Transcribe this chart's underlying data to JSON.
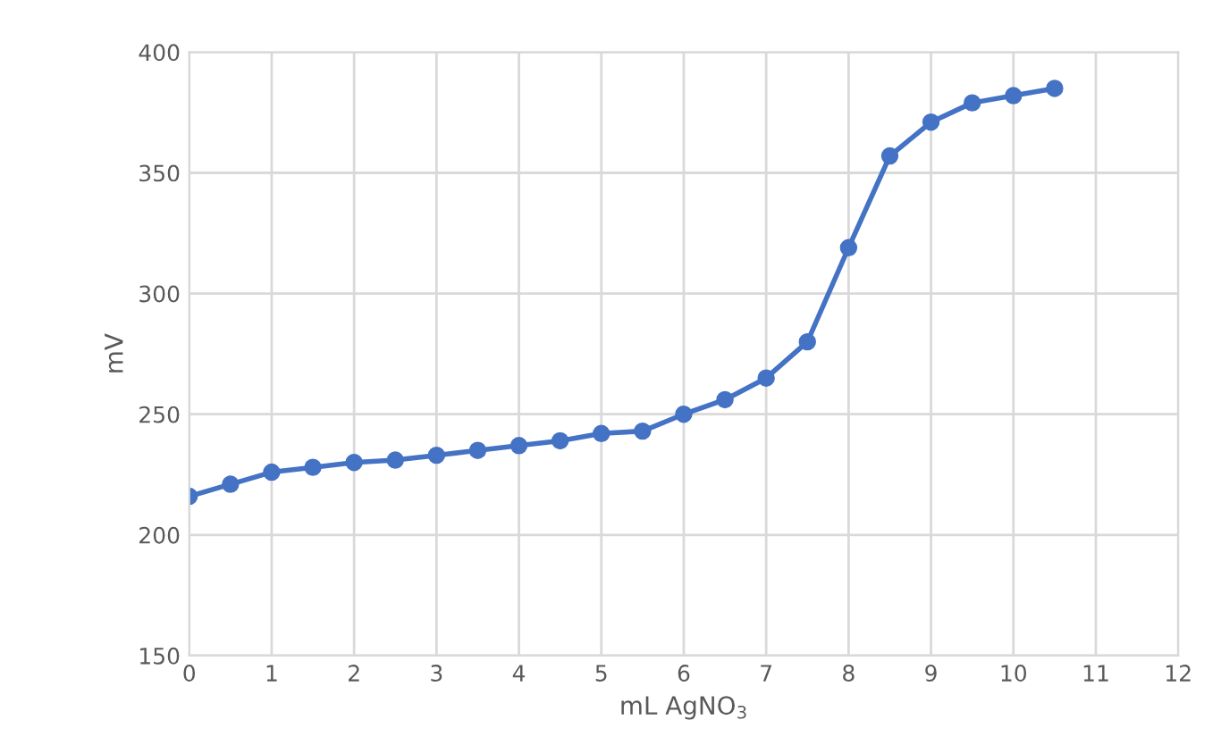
{
  "chart_data": {
    "type": "line",
    "xlabel": "mL AgNO$_{3}$",
    "ylabel": "mV",
    "x": [
      0,
      0.5,
      1,
      1.5,
      2,
      2.5,
      3,
      3.5,
      4,
      4.5,
      5,
      5.5,
      6,
      6.5,
      7,
      7.5,
      8,
      8.5,
      9,
      9.5,
      10,
      10.5
    ],
    "series": [
      {
        "color": "#4472c4",
        "values": [
          216,
          221,
          226,
          228,
          230,
          231,
          233,
          235,
          237,
          239,
          242,
          243,
          250,
          256,
          265,
          280,
          319,
          357,
          371,
          379,
          382,
          385
        ]
      }
    ],
    "xlim": [
      0,
      12
    ],
    "xticks": [
      0,
      1,
      2,
      3,
      4,
      5,
      6,
      7,
      8,
      9,
      10,
      11,
      12
    ],
    "ylim": [
      150,
      400
    ],
    "yticks": [
      150,
      200,
      250,
      300,
      350,
      400
    ],
    "grid": true,
    "marker": "circle",
    "line_style": "solid"
  }
}
